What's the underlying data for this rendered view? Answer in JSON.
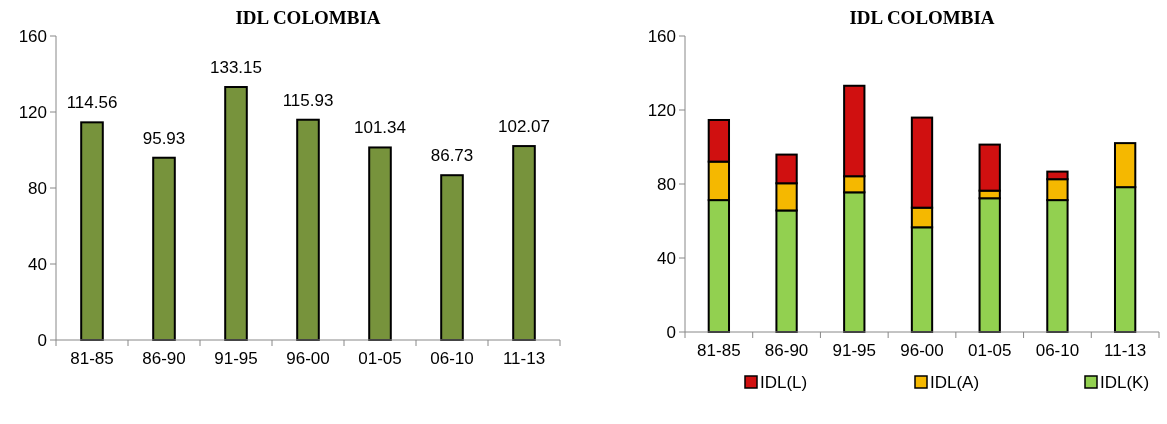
{
  "chart_data": [
    {
      "type": "bar",
      "title": "IDL COLOMBIA",
      "categories": [
        "81-85",
        "86-90",
        "91-95",
        "96-00",
        "01-05",
        "06-10",
        "11-13"
      ],
      "values": [
        114.56,
        95.93,
        133.15,
        115.93,
        101.34,
        86.73,
        102.07
      ],
      "color": "#77933c",
      "ylim": [
        0,
        160
      ],
      "yticks": [
        0,
        40,
        80,
        120,
        160
      ],
      "data_labels": true,
      "grid": false
    },
    {
      "type": "bar",
      "title": "IDL COLOMBIA",
      "categories": [
        "81-85",
        "86-90",
        "91-95",
        "96-00",
        "01-05",
        "06-10",
        "11-13"
      ],
      "stacked": true,
      "legend": "bottom",
      "grid": false,
      "ylim": [
        0,
        160
      ],
      "yticks": [
        0,
        40,
        80,
        120,
        160
      ],
      "series": [
        {
          "name": "IDL(K)",
          "color": "#92d050",
          "values": [
            71.3,
            65.7,
            75.5,
            56.6,
            72.3,
            71.3,
            78.3
          ]
        },
        {
          "name": "IDL(A)",
          "color": "#f5b800",
          "values": [
            20.8,
            14.7,
            8.7,
            10.6,
            4.1,
            11.3,
            23.8
          ]
        },
        {
          "name": "IDL(L)",
          "color": "#d01010",
          "values": [
            22.5,
            15.5,
            48.9,
            48.7,
            24.9,
            4.1,
            0
          ]
        }
      ]
    }
  ]
}
